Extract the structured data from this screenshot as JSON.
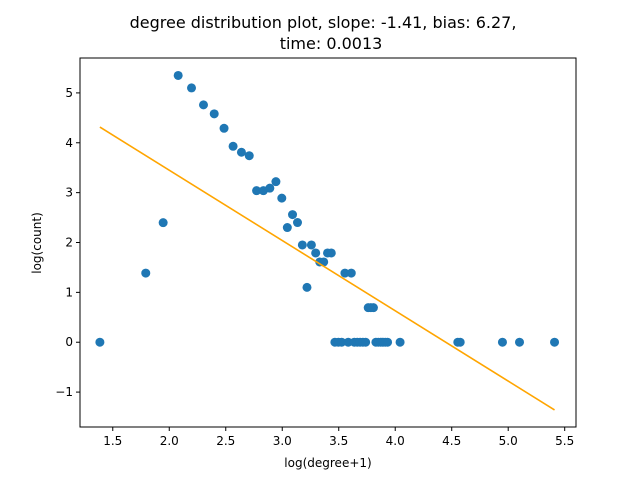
{
  "chart_data": {
    "type": "scatter",
    "title_line1": "degree distribution plot, slope: -1.41, bias: 6.27,",
    "title_line2": "time: 0.0013",
    "xlabel": "log(degree+1)",
    "ylabel": "log(count)",
    "xlim": [
      1.21,
      5.6
    ],
    "ylim": [
      -1.7,
      5.7
    ],
    "xticks": [
      1.5,
      2.0,
      2.5,
      3.0,
      3.5,
      4.0,
      4.5,
      5.0,
      5.5
    ],
    "xtick_labels": [
      "1.5",
      "2.0",
      "2.5",
      "3.0",
      "3.5",
      "4.0",
      "4.5",
      "5.0",
      "5.5"
    ],
    "yticks": [
      -1,
      0,
      1,
      2,
      3,
      4,
      5
    ],
    "ytick_labels": [
      "−1",
      "0",
      "1",
      "2",
      "3",
      "4",
      "5"
    ],
    "grid": false,
    "scatter_color": "#1f77b4",
    "line_color": "#ffa500",
    "points": [
      [
        1.386,
        0.0
      ],
      [
        1.792,
        1.386
      ],
      [
        1.946,
        2.398
      ],
      [
        2.079,
        5.35
      ],
      [
        2.197,
        5.1
      ],
      [
        2.303,
        4.76
      ],
      [
        2.398,
        4.58
      ],
      [
        2.485,
        4.29
      ],
      [
        2.565,
        3.93
      ],
      [
        2.639,
        3.81
      ],
      [
        2.708,
        3.74
      ],
      [
        2.773,
        3.04
      ],
      [
        2.833,
        3.04
      ],
      [
        2.89,
        3.09
      ],
      [
        2.944,
        3.22
      ],
      [
        2.996,
        2.89
      ],
      [
        3.045,
        2.3
      ],
      [
        3.091,
        2.56
      ],
      [
        3.135,
        2.4
      ],
      [
        3.178,
        1.95
      ],
      [
        3.219,
        1.1
      ],
      [
        3.258,
        1.95
      ],
      [
        3.296,
        1.79
      ],
      [
        3.332,
        1.61
      ],
      [
        3.367,
        1.61
      ],
      [
        3.401,
        1.79
      ],
      [
        3.434,
        1.79
      ],
      [
        3.466,
        0.0
      ],
      [
        3.497,
        0.0
      ],
      [
        3.526,
        0.0
      ],
      [
        3.555,
        1.386
      ],
      [
        3.584,
        0.0
      ],
      [
        3.611,
        1.386
      ],
      [
        3.638,
        0.0
      ],
      [
        3.664,
        0.0
      ],
      [
        3.689,
        0.0
      ],
      [
        3.714,
        0.0
      ],
      [
        3.738,
        0.0
      ],
      [
        3.761,
        0.693
      ],
      [
        3.784,
        0.693
      ],
      [
        3.807,
        0.693
      ],
      [
        3.829,
        0.0
      ],
      [
        3.85,
        0.0
      ],
      [
        3.871,
        0.0
      ],
      [
        3.892,
        0.0
      ],
      [
        3.912,
        0.0
      ],
      [
        3.932,
        0.0
      ],
      [
        4.043,
        0.0
      ],
      [
        4.554,
        0.0
      ],
      [
        4.575,
        0.0
      ],
      [
        4.949,
        0.0
      ],
      [
        5.1,
        0.0
      ],
      [
        5.41,
        0.0
      ]
    ],
    "fit_line": {
      "slope": -1.41,
      "bias": 6.27,
      "x_start": 1.386,
      "x_end": 5.41
    }
  }
}
